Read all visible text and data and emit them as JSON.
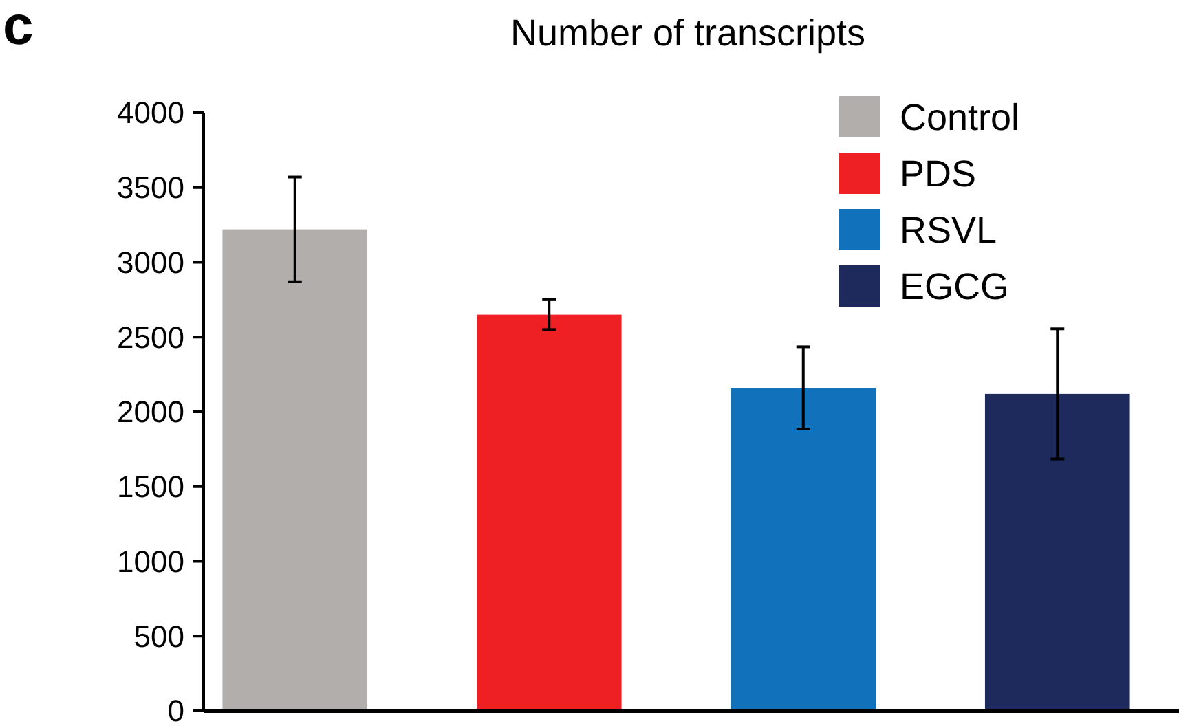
{
  "chart_data": {
    "type": "bar",
    "title": "Number of transcripts",
    "annotations": [
      "c"
    ],
    "categories": [
      null,
      null,
      null,
      null
    ],
    "series": [
      {
        "name": "Control",
        "color": "#b2aeac",
        "values": [
          3220,
          null,
          null,
          null
        ],
        "errors": [
          350,
          null,
          null,
          null
        ]
      },
      {
        "name": "PDS",
        "color": "#ee2024",
        "values": [
          null,
          2650,
          null,
          null
        ],
        "errors": [
          null,
          100,
          null,
          null
        ]
      },
      {
        "name": "RSVL",
        "color": "#1172bb",
        "values": [
          null,
          null,
          2160,
          null
        ],
        "errors": [
          null,
          null,
          275,
          null
        ]
      },
      {
        "name": "EGCG",
        "color": "#1e2a5c",
        "values": [
          null,
          null,
          null,
          2120
        ],
        "errors": [
          null,
          null,
          null,
          435
        ]
      }
    ],
    "ylim": [
      0,
      4000
    ],
    "yticks": [
      0,
      500,
      1000,
      1500,
      2000,
      2500,
      3000,
      3500,
      4000
    ],
    "grid": false,
    "legend": "top right"
  }
}
